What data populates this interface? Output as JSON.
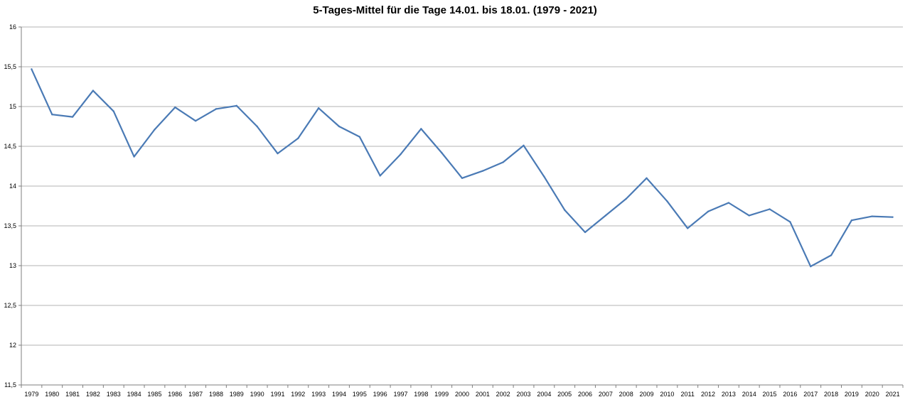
{
  "chart_data": {
    "type": "line",
    "title": "5-Tages-Mittel für die Tage 14.01. bis 18.01. (1979 - 2021)",
    "xlabel": "",
    "ylabel": "",
    "ylim": [
      11.5,
      16
    ],
    "y_ticks": [
      "11,5",
      "12",
      "12,5",
      "13",
      "13,5",
      "14",
      "14,5",
      "15",
      "15,5",
      "16"
    ],
    "grid": true,
    "legend": "none",
    "color": "#4a7ab5",
    "categories": [
      "1979",
      "1980",
      "1981",
      "1982",
      "1983",
      "1984",
      "1985",
      "1986",
      "1987",
      "1988",
      "1989",
      "1990",
      "1991",
      "1992",
      "1993",
      "1994",
      "1995",
      "1996",
      "1997",
      "1998",
      "1999",
      "2000",
      "2001",
      "2002",
      "2003",
      "2004",
      "2005",
      "2006",
      "2007",
      "2008",
      "2009",
      "2010",
      "2011",
      "2012",
      "2013",
      "2014",
      "2015",
      "2016",
      "2017",
      "2018",
      "2019",
      "2020",
      "2021"
    ],
    "series": [
      {
        "values": [
          15.47,
          14.9,
          14.87,
          15.2,
          14.94,
          14.37,
          14.71,
          14.99,
          14.82,
          14.97,
          15.01,
          14.75,
          14.41,
          14.6,
          14.98,
          14.75,
          14.62,
          14.13,
          14.4,
          14.72,
          14.42,
          14.1,
          14.19,
          14.3,
          14.51,
          14.12,
          13.7,
          13.42,
          13.63,
          13.84,
          14.1,
          13.81,
          13.47,
          13.68,
          13.79,
          13.63,
          13.71,
          13.55,
          12.99,
          13.13,
          13.57,
          13.62,
          13.61
        ]
      }
    ]
  }
}
